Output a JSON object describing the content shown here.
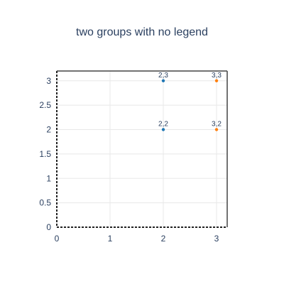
{
  "chart_data": {
    "type": "scatter",
    "title": "two groups with no legend",
    "xlabel": "",
    "ylabel": "",
    "xlim": [
      0,
      3.2
    ],
    "ylim": [
      0,
      3.2
    ],
    "x_ticks": [
      "0",
      "1",
      "2",
      "3"
    ],
    "y_ticks": [
      "0",
      "0.5",
      "1",
      "1.5",
      "2",
      "2.5",
      "3"
    ],
    "grid": true,
    "legend": false,
    "series": [
      {
        "color": "#1f77b4",
        "points": [
          {
            "x": 2,
            "y": 3,
            "label": "2,3"
          },
          {
            "x": 2,
            "y": 2,
            "label": "2,2"
          }
        ]
      },
      {
        "color": "#ff7f0e",
        "points": [
          {
            "x": 3,
            "y": 3,
            "label": "3,3"
          },
          {
            "x": 3,
            "y": 2,
            "label": "3,2"
          }
        ]
      }
    ]
  }
}
